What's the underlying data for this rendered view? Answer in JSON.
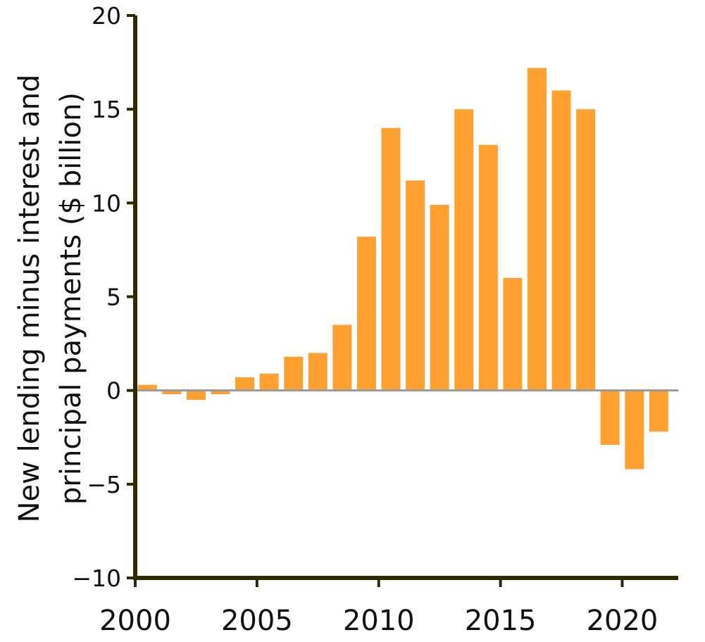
{
  "chart_data": {
    "type": "bar",
    "title": "",
    "xlabel": "",
    "ylabel_lines": [
      "New lending minus interest and",
      "principal payments ($ billion)"
    ],
    "x": [
      2000,
      2001,
      2002,
      2003,
      2004,
      2005,
      2006,
      2007,
      2008,
      2009,
      2010,
      2011,
      2012,
      2013,
      2014,
      2015,
      2016,
      2017,
      2018,
      2019,
      2020,
      2021
    ],
    "values": [
      0.3,
      -0.2,
      -0.5,
      -0.2,
      0.7,
      0.9,
      1.8,
      2.0,
      3.5,
      8.2,
      14.0,
      11.2,
      9.9,
      15.0,
      13.1,
      6.0,
      17.2,
      16.0,
      15.0,
      -2.9,
      -4.2,
      -2.2
    ],
    "xlim": [
      2000,
      2022.3
    ],
    "ylim": [
      -10,
      20
    ],
    "x_ticks": [
      2000,
      2005,
      2010,
      2015,
      2020
    ],
    "y_ticks": [
      -10,
      -5,
      0,
      5,
      10,
      15,
      20
    ],
    "x_tick_labels": [
      "2000",
      "2005",
      "2010",
      "2015",
      "2020"
    ],
    "y_tick_labels": [
      "−10",
      "−5",
      "0",
      "5",
      "10",
      "15",
      "20"
    ],
    "grid": false,
    "legend": "none",
    "bar_color": "#FFA030",
    "axis_color": "#2E2A00",
    "zero_line_color": "#9A9A9A"
  }
}
